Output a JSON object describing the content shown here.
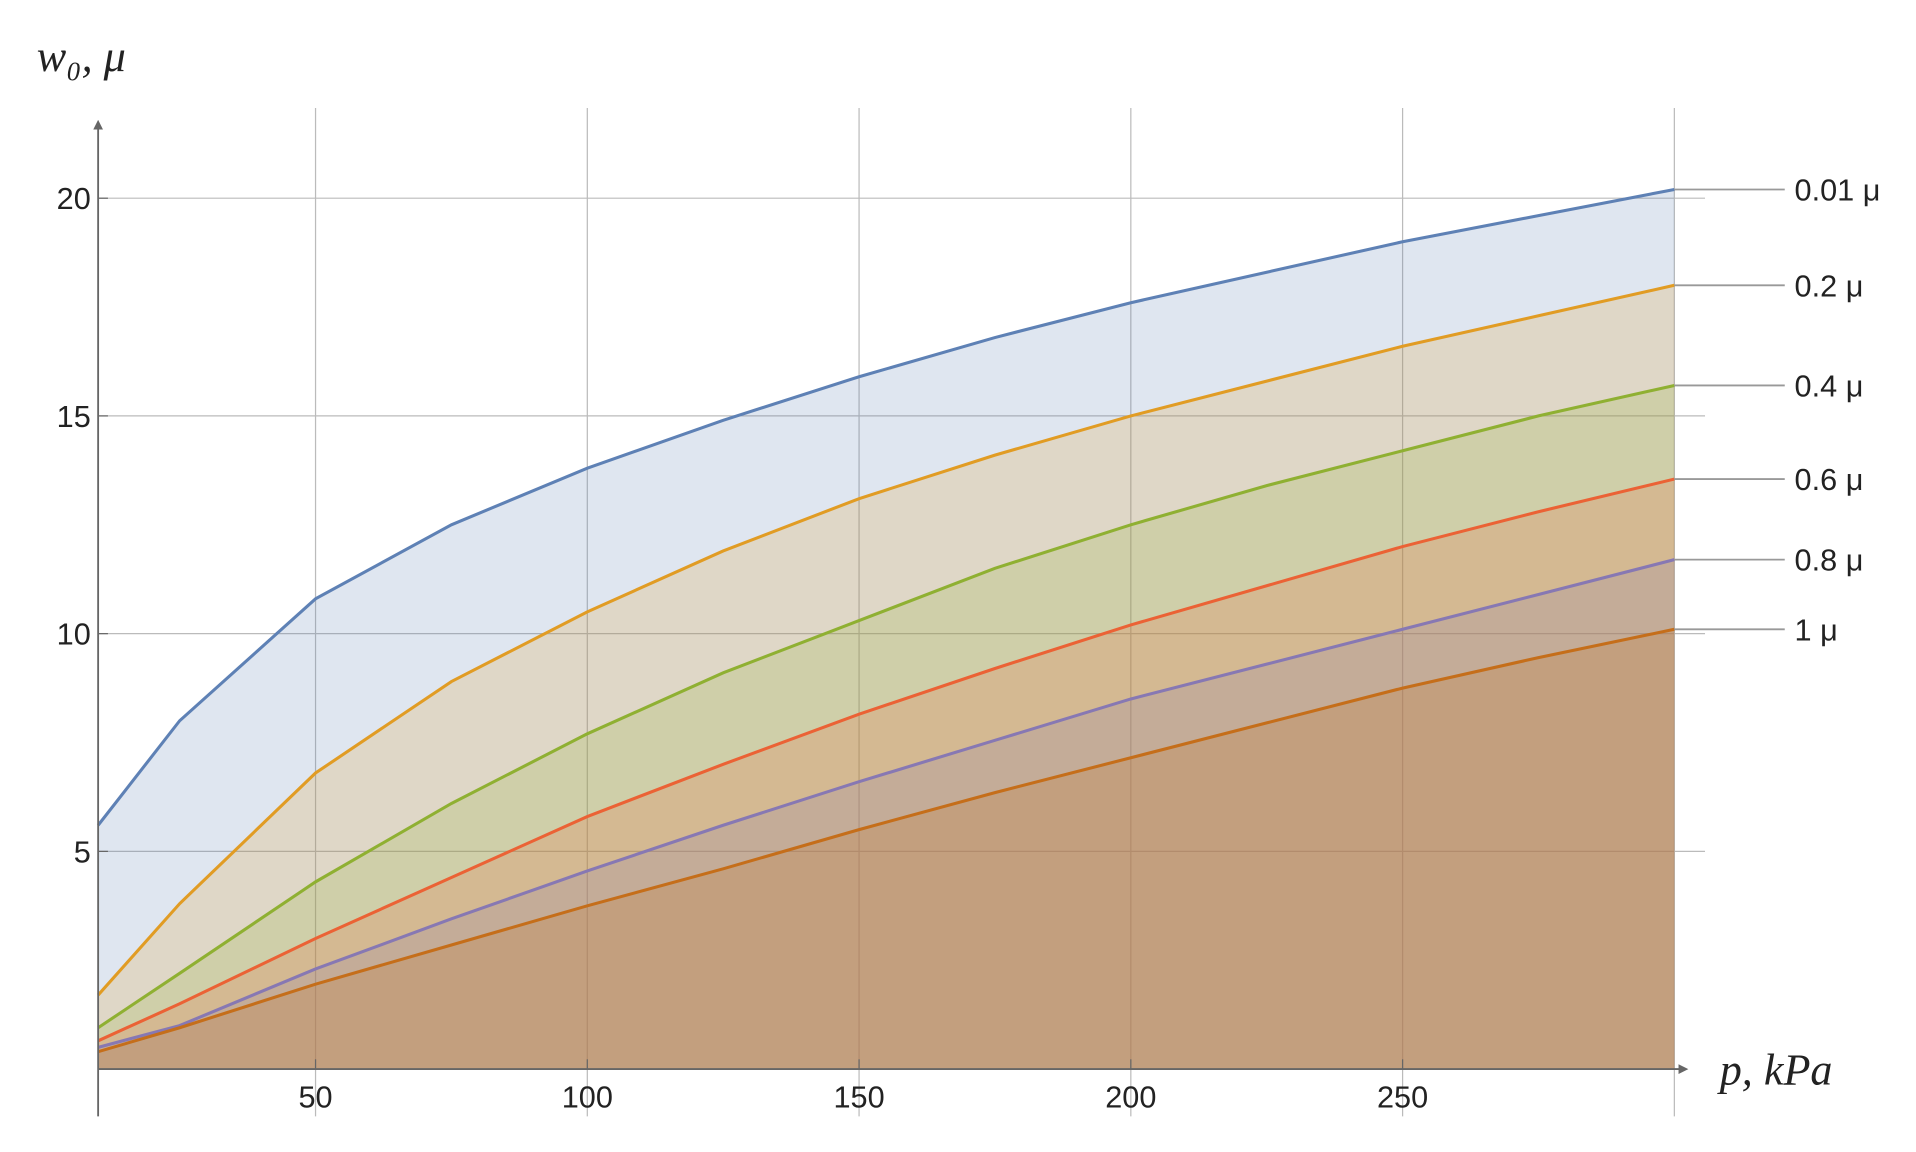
{
  "chart_data": {
    "type": "area",
    "x_label": "p, kPa",
    "y_label": "w₀, μ",
    "x": [
      10,
      25,
      50,
      75,
      100,
      125,
      150,
      175,
      200,
      225,
      250,
      275,
      300
    ],
    "series": [
      {
        "name": "0.01 μ",
        "color": "#5e81b5",
        "values": [
          5.6,
          8.0,
          10.8,
          12.5,
          13.8,
          14.9,
          15.9,
          16.8,
          17.6,
          18.3,
          19.0,
          19.6,
          20.2
        ]
      },
      {
        "name": "0.2 μ",
        "color": "#e19c24",
        "values": [
          1.7,
          3.8,
          6.8,
          8.9,
          10.5,
          11.9,
          13.1,
          14.1,
          15.0,
          15.8,
          16.6,
          17.3,
          18.0
        ]
      },
      {
        "name": "0.4 μ",
        "color": "#8fb032",
        "values": [
          0.95,
          2.2,
          4.3,
          6.1,
          7.7,
          9.1,
          10.3,
          11.5,
          12.5,
          13.4,
          14.2,
          15.0,
          15.7
        ]
      },
      {
        "name": "0.6 μ",
        "color": "#eb6235",
        "values": [
          0.65,
          1.5,
          3.0,
          4.4,
          5.8,
          7.0,
          8.15,
          9.2,
          10.2,
          11.1,
          12.0,
          12.8,
          13.55
        ]
      },
      {
        "name": "0.8 μ",
        "color": "#8778b3",
        "values": [
          0.5,
          1.0,
          2.3,
          3.45,
          4.55,
          5.6,
          6.6,
          7.55,
          8.5,
          9.3,
          10.1,
          10.9,
          11.7
        ]
      },
      {
        "name": "1 μ",
        "color": "#c56e1a",
        "values": [
          0.4,
          0.95,
          1.95,
          2.85,
          3.75,
          4.6,
          5.5,
          6.35,
          7.15,
          7.95,
          8.75,
          9.45,
          10.1
        ]
      }
    ],
    "xlim": [
      10,
      300
    ],
    "ylim": [
      0,
      22
    ],
    "xticks": [
      50,
      100,
      150,
      200,
      250
    ],
    "yticks": [
      5,
      10,
      15,
      20
    ],
    "grid": true,
    "fill_opacity": 0.2
  }
}
